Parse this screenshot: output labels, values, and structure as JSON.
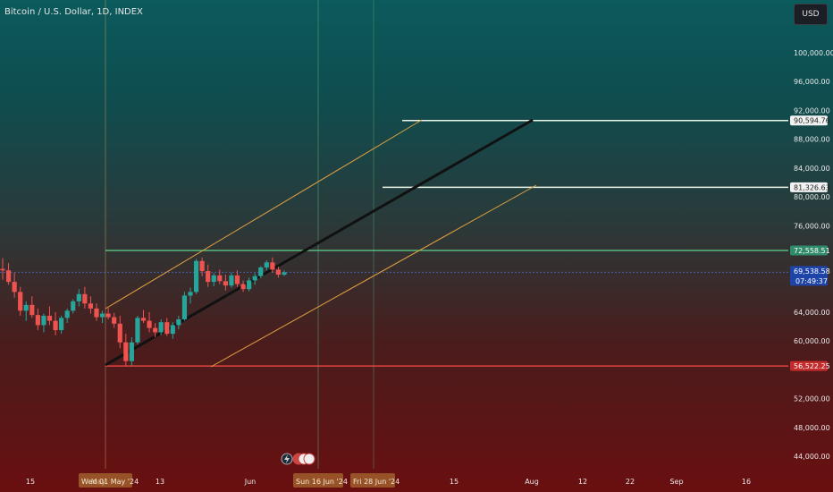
{
  "chart_data": {
    "type": "candlestick",
    "title": "Bitcoin / U.S. Dollar, 1D, INDEX",
    "currency": "USD",
    "y_axis": {
      "ticks": [
        44000,
        48000,
        52000,
        56000,
        60000,
        64000,
        68000,
        72000,
        76000,
        80000,
        84000,
        88000,
        92000,
        96000,
        100000
      ],
      "ylim": [
        42500,
        104000
      ]
    },
    "x_axis": {
      "ticks": [
        "15",
        "May",
        "13",
        "Jun",
        "15",
        "Aug",
        "12",
        "22",
        "Sep",
        "16"
      ]
    },
    "price_labels": [
      {
        "value": "90,594.76",
        "style": "light"
      },
      {
        "value": "81,326.63",
        "style": "light"
      },
      {
        "value": "72,558.51",
        "style": "green"
      },
      {
        "value": "69,538.58",
        "style": "blue",
        "sub": "07:49:37"
      },
      {
        "value": "56,522.25",
        "style": "red"
      }
    ],
    "levels": {
      "upper_target": 90594.76,
      "mid_target": 81326.63,
      "resistance": 72558.51,
      "current": 69538.58,
      "support": 56522.25
    },
    "date_labels": [
      "Wed 01 May '24",
      "Sun 16 Jun '24",
      "Fri 28 Jun '24"
    ],
    "candles": [
      [
        70000,
        71500,
        68500,
        69800
      ],
      [
        69800,
        70800,
        67800,
        68200
      ],
      [
        68200,
        69500,
        66000,
        66800
      ],
      [
        66800,
        67500,
        63500,
        64200
      ],
      [
        64200,
        65500,
        62800,
        65000
      ],
      [
        65000,
        66200,
        63200,
        63600
      ],
      [
        63600,
        64500,
        61500,
        62200
      ],
      [
        62200,
        63800,
        61200,
        63500
      ],
      [
        63500,
        64800,
        62200,
        62800
      ],
      [
        62800,
        64000,
        60800,
        61500
      ],
      [
        61500,
        63500,
        61000,
        63200
      ],
      [
        63200,
        64500,
        62500,
        64200
      ],
      [
        64200,
        65800,
        63800,
        65500
      ],
      [
        65500,
        67200,
        64800,
        66500
      ],
      [
        66500,
        67500,
        64500,
        65200
      ],
      [
        65200,
        66200,
        63800,
        64500
      ],
      [
        64500,
        65200,
        62800,
        63300
      ],
      [
        63300,
        64200,
        62500,
        63800
      ],
      [
        63800,
        64600,
        63000,
        63300
      ],
      [
        63300,
        63900,
        61800,
        62400
      ],
      [
        62400,
        63500,
        59000,
        59800
      ],
      [
        59800,
        61000,
        56500,
        57200
      ],
      [
        57200,
        60500,
        56600,
        59800
      ],
      [
        59800,
        63500,
        59500,
        63200
      ],
      [
        63200,
        64300,
        62500,
        62800
      ],
      [
        62800,
        64000,
        61200,
        61800
      ],
      [
        61800,
        62500,
        60500,
        61200
      ],
      [
        61200,
        63000,
        60800,
        62600
      ],
      [
        62600,
        63200,
        60700,
        61000
      ],
      [
        61000,
        62600,
        60300,
        62200
      ],
      [
        62200,
        63500,
        61600,
        63000
      ],
      [
        63000,
        66800,
        62800,
        66300
      ],
      [
        66300,
        67400,
        65200,
        66800
      ],
      [
        66800,
        71400,
        66500,
        71100
      ],
      [
        71100,
        71600,
        69000,
        69700
      ],
      [
        69700,
        70600,
        67500,
        68200
      ],
      [
        68200,
        69400,
        67600,
        69100
      ],
      [
        69100,
        69900,
        67900,
        68300
      ],
      [
        68300,
        69200,
        67000,
        67700
      ],
      [
        67700,
        69500,
        67400,
        69100
      ],
      [
        69100,
        69800,
        67500,
        67900
      ],
      [
        67900,
        68400,
        66800,
        67200
      ],
      [
        67200,
        68800,
        66900,
        68400
      ],
      [
        68400,
        69400,
        67800,
        69000
      ],
      [
        69000,
        70400,
        68700,
        70200
      ],
      [
        70200,
        71200,
        69800,
        70900
      ],
      [
        70900,
        71600,
        69500,
        69900
      ],
      [
        69900,
        70300,
        68800,
        69200
      ],
      [
        69200,
        69800,
        69000,
        69538
      ]
    ]
  }
}
